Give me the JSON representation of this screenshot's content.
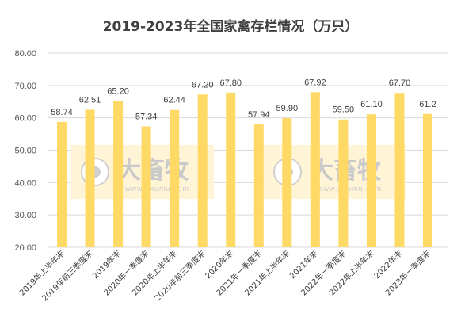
{
  "chart_data": {
    "type": "bar",
    "title": "2019-2023年全国家禽存栏情况（万只）",
    "categories": [
      "2019年上半年末",
      "2019年前三季度末",
      "2019年末",
      "2020年一季度末",
      "2020年上半年末",
      "2020年前三季度末",
      "2020年末",
      "2021年一季度末",
      "2021年上半年末",
      "2021年末",
      "2022年一季度末",
      "2022年上半年末",
      "2022年末",
      "2023年一季度末"
    ],
    "values": [
      58.74,
      62.51,
      65.2,
      57.34,
      62.44,
      67.2,
      67.8,
      57.94,
      59.9,
      67.92,
      59.5,
      61.1,
      67.7,
      61.2
    ],
    "value_labels": [
      "58.74",
      "62.51",
      "65.20",
      "57.34",
      "62.44",
      "67.20",
      "67.80",
      "57.94",
      "59.90",
      "67.92",
      "59.50",
      "61.10",
      "67.70",
      "61.2"
    ],
    "ylim": [
      20,
      80
    ],
    "yticks": [
      "20.00",
      "30.00",
      "40.00",
      "50.00",
      "60.00",
      "70.00",
      "80.00"
    ],
    "grid": true,
    "bar_color": "#FFD966",
    "xlabel": "",
    "ylabel": ""
  },
  "watermark": {
    "text": "大畜牧",
    "url": "www.dxumu.com",
    "bg_color": "#FFF5D6",
    "logo_icon": "circle-logo-icon"
  }
}
